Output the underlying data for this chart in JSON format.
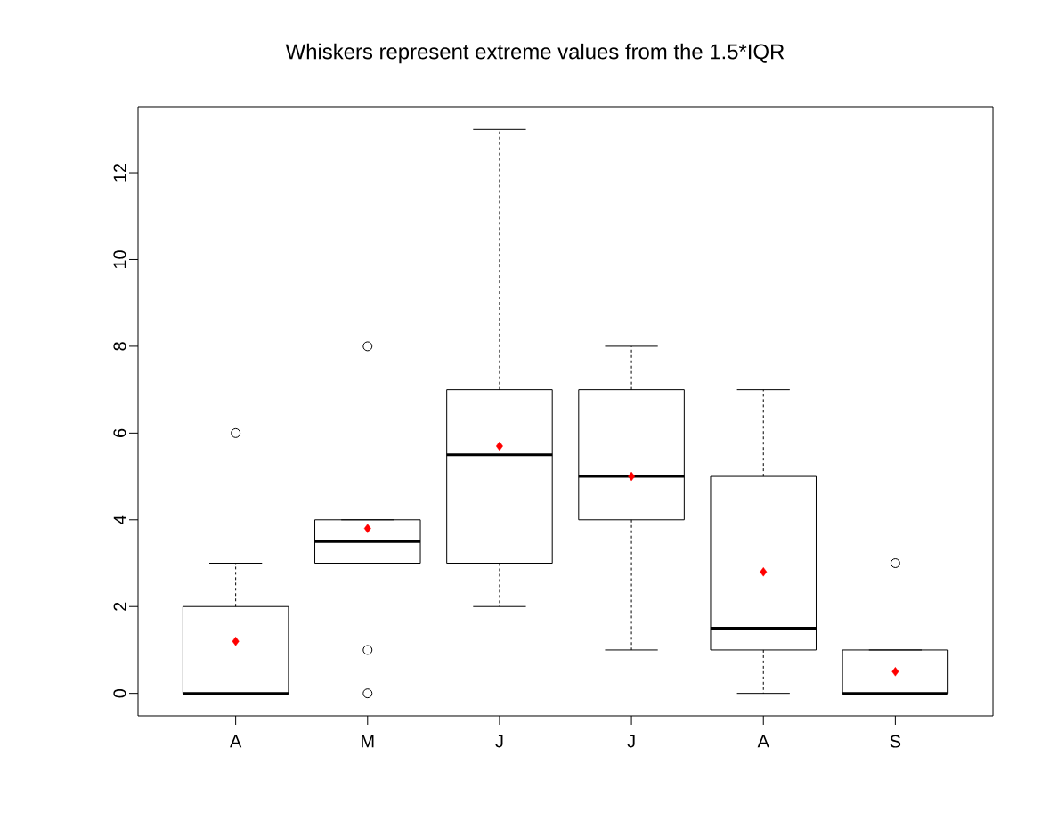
{
  "chart_data": {
    "type": "box",
    "title": "Whiskers represent extreme values from the 1.5*IQR",
    "categories": [
      "A",
      "M",
      "J",
      "J",
      "A",
      "S"
    ],
    "boxes": [
      {
        "low": 0,
        "q1": 0,
        "median": 0,
        "q3": 2,
        "high": 3,
        "mean": 1.2,
        "outliers": [
          6
        ]
      },
      {
        "low": 3,
        "q1": 3,
        "median": 3.5,
        "q3": 4,
        "high": 4,
        "mean": 3.8,
        "outliers": [
          8,
          1,
          0
        ]
      },
      {
        "low": 2,
        "q1": 3,
        "median": 5.5,
        "q3": 7,
        "high": 13,
        "mean": 5.7
      },
      {
        "low": 1,
        "q1": 4,
        "median": 5,
        "q3": 7,
        "high": 8,
        "mean": 5.0
      },
      {
        "low": 0,
        "q1": 1,
        "median": 1.5,
        "q3": 5,
        "high": 7,
        "mean": 2.8
      },
      {
        "low": 0,
        "q1": 0,
        "median": 0,
        "q3": 1,
        "high": 1,
        "mean": 0.5,
        "outliers": [
          3
        ]
      }
    ],
    "ylim": [
      -0.52,
      13.52
    ],
    "yticks": [
      0,
      2,
      4,
      6,
      8,
      10,
      12
    ]
  }
}
